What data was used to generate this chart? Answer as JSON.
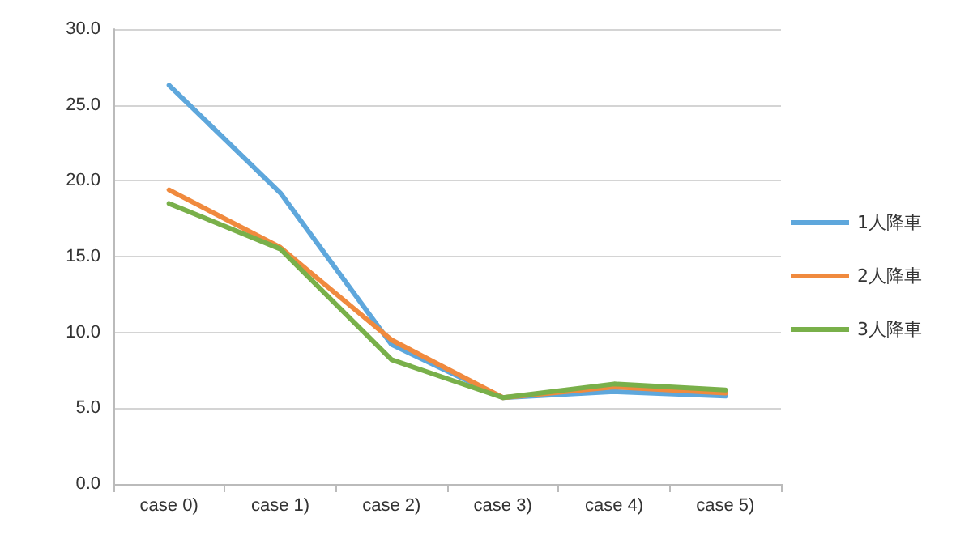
{
  "chart_data": {
    "type": "line",
    "categories": [
      "case 0)",
      "case 1)",
      "case 2)",
      "case 3)",
      "case 4)",
      "case 5)"
    ],
    "series": [
      {
        "name": "1人降車",
        "color": "#5ea7dc",
        "values": [
          26.3,
          19.2,
          9.2,
          5.7,
          6.1,
          5.8
        ]
      },
      {
        "name": "2人降車",
        "color": "#f08a3e",
        "values": [
          19.4,
          15.6,
          9.5,
          5.7,
          6.4,
          6.0
        ]
      },
      {
        "name": "3人降車",
        "color": "#79b04a",
        "values": [
          18.5,
          15.5,
          8.2,
          5.7,
          6.6,
          6.2
        ]
      }
    ],
    "ylim": [
      0,
      30
    ],
    "yticks": [
      {
        "value": 0,
        "label": "0.0"
      },
      {
        "value": 5,
        "label": "5.0"
      },
      {
        "value": 10,
        "label": "10.0"
      },
      {
        "value": 15,
        "label": "15.0"
      },
      {
        "value": 20,
        "label": "20.0"
      },
      {
        "value": 25,
        "label": "25.0"
      },
      {
        "value": 30,
        "label": "30.0"
      }
    ],
    "grid": "y",
    "legend": "right",
    "marker": "none",
    "line_style": "solid"
  }
}
